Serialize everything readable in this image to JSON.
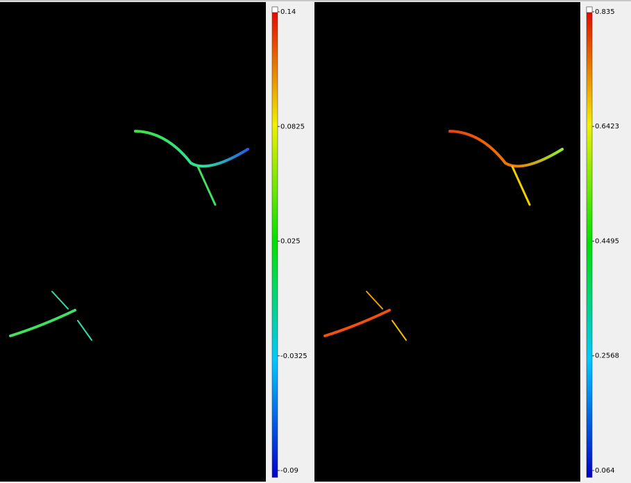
{
  "panels": [
    {
      "colorbar": {
        "ticks": [
          0.14,
          0.0825,
          0.025,
          -0.0325,
          -0.09
        ]
      }
    },
    {
      "colorbar": {
        "ticks": [
          0.835,
          0.6423,
          0.4495,
          0.2568,
          0.064
        ]
      }
    }
  ]
}
